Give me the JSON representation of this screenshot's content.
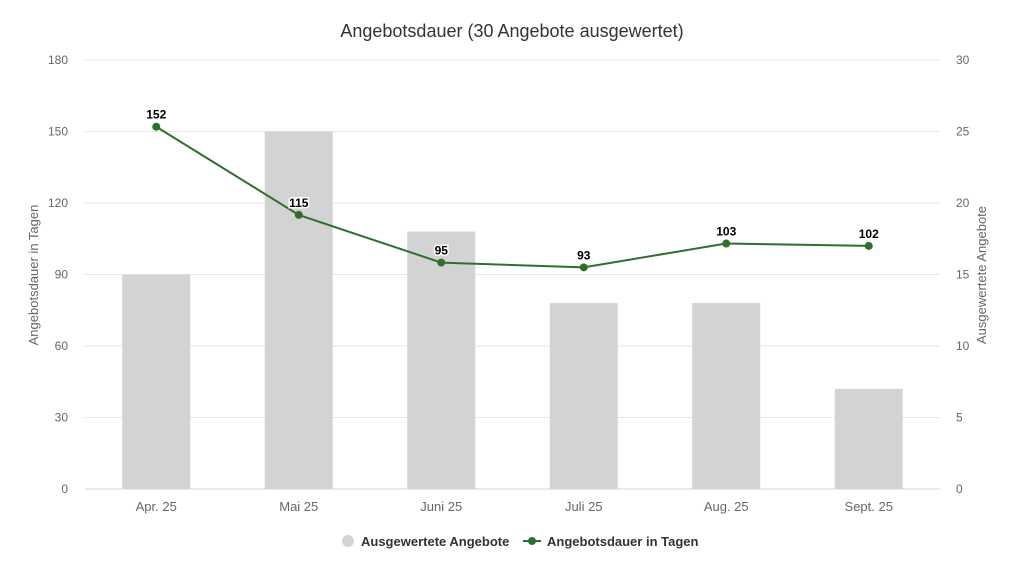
{
  "chart_data": {
    "type": "bar",
    "title": "Angebotsdauer (30 Angebote ausgewertet)",
    "categories": [
      "Apr. 25",
      "Mai 25",
      "Juni 25",
      "Juli 25",
      "Aug. 25",
      "Sept. 25"
    ],
    "ylabel_left": "Angebotsdauer in Tagen",
    "ylabel_right": "Ausgewertete Angebote",
    "ylim_left": [
      0,
      180
    ],
    "ylim_right": [
      0,
      30
    ],
    "yticks_left": [
      "0",
      "30",
      "60",
      "90",
      "120",
      "150",
      "180"
    ],
    "yticks_right": [
      "0",
      "5",
      "10",
      "15",
      "20",
      "25",
      "30"
    ],
    "grid": true,
    "legend_position": "bottom",
    "series": [
      {
        "name": "Ausgewertete Angebote",
        "type": "bar",
        "axis": "right",
        "color": "#d3d3d3",
        "values": [
          15,
          25,
          18,
          13,
          13,
          7
        ]
      },
      {
        "name": "Angebotsdauer in Tagen",
        "type": "line",
        "axis": "left",
        "color": "#2e6f2e",
        "values": [
          152,
          115,
          95,
          93,
          103,
          102
        ],
        "labels": [
          "152",
          "115",
          "95",
          "93",
          "103",
          "102"
        ]
      }
    ]
  }
}
